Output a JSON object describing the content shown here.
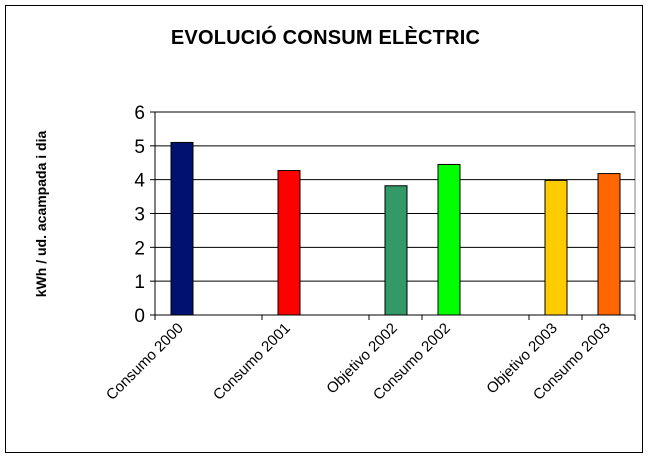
{
  "chart_data": {
    "type": "bar",
    "title": "EVOLUCIÓ CONSUM ELÈCTRIC",
    "xlabel": "",
    "ylabel": "kWh / ud. acampada i dia",
    "ylim": [
      0,
      6
    ],
    "yticks": [
      0,
      1,
      2,
      3,
      4,
      5,
      6
    ],
    "grid": true,
    "legend": "none",
    "categories": [
      "Consumo 2000",
      "Consumo 2001",
      "Objetivo 2002",
      "Consumo 2002",
      "Objetivo 2003",
      "Consumo 2003"
    ],
    "values": [
      5.1,
      4.27,
      3.82,
      4.45,
      3.98,
      4.18
    ],
    "colors": [
      "#00126E",
      "#FF0000",
      "#339966",
      "#00FF00",
      "#FFCC00",
      "#FF6600"
    ]
  }
}
